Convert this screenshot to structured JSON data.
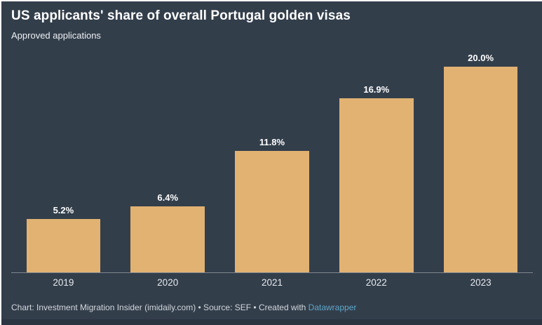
{
  "header": {
    "title": "US applicants' share of overall Portugal golden visas",
    "subtitle": "Approved applications"
  },
  "chart_data": {
    "type": "bar",
    "title": "US applicants' share of overall Portugal golden visas",
    "subtitle": "Approved applications",
    "categories": [
      "2019",
      "2020",
      "2021",
      "2022",
      "2023"
    ],
    "values": [
      5.2,
      6.4,
      11.8,
      16.9,
      20.0
    ],
    "value_labels": [
      "5.2%",
      "6.4%",
      "11.8%",
      "16.9%",
      "20.0%"
    ],
    "xlabel": "",
    "ylabel": "",
    "ylim": [
      0,
      21
    ],
    "grid": false,
    "legend": false,
    "bar_color": "#e2b273",
    "background_color": "#333e4b",
    "label_color": "#ffffff"
  },
  "footer": {
    "text_before_link": "Chart: Investment Migration Insider (imidaily.com) • Source: SEF • Created with ",
    "link_label": "Datawrapper",
    "link_color": "#5ea7c9"
  }
}
